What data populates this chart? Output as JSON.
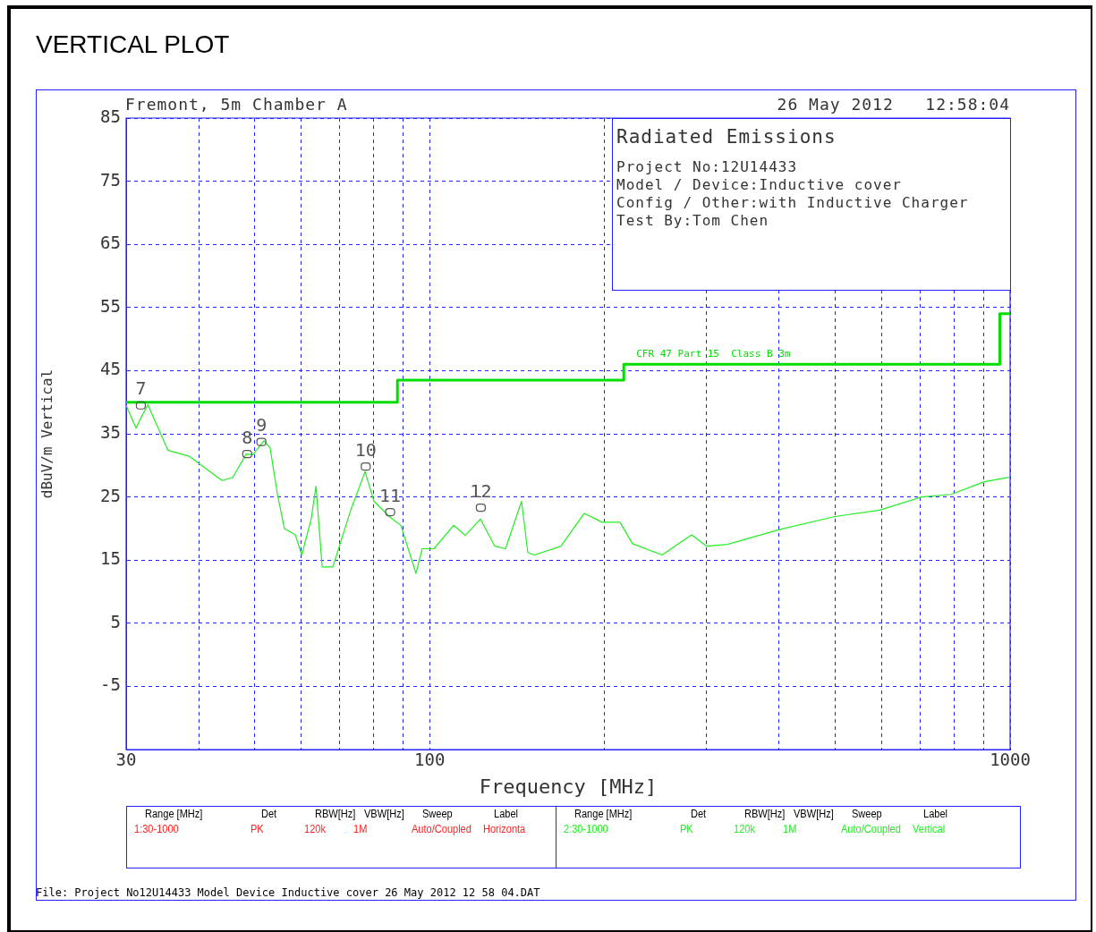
{
  "chart_data": {
    "type": "line",
    "title": "VERTICAL PLOT",
    "xlabel": "Frequency [MHz]",
    "ylabel": "dBuV/m Vertical",
    "log": "x",
    "grid": true,
    "legend": false,
    "marker": "none",
    "line_style": "solid",
    "xlim": [
      30,
      1000
    ],
    "xticks": [
      30,
      {
        "value": 40,
        "label": null
      },
      {
        "value": 50,
        "label": null
      },
      {
        "value": 60,
        "label": null
      },
      {
        "value": 70,
        "label": null
      },
      {
        "value": 80,
        "label": null
      },
      {
        "value": 90,
        "label": null
      },
      100,
      {
        "value": 200,
        "label": null
      },
      {
        "value": 300,
        "label": null
      },
      {
        "value": 400,
        "label": null
      },
      {
        "value": 500,
        "label": null
      },
      {
        "value": 600,
        "label": null
      },
      {
        "value": 700,
        "label": null
      },
      {
        "value": 800,
        "label": null
      },
      {
        "value": 900,
        "label": null
      },
      1000
    ],
    "ylim": [
      -15,
      85
    ],
    "yticks": [
      -5,
      5,
      15,
      25,
      35,
      45,
      55,
      65,
      75,
      85
    ],
    "series": [
      {
        "color": "#22ee22",
        "x": [
          30,
          31.2,
          31.8,
          32.7,
          33.8,
          35.4,
          38.6,
          43.9,
          45.8,
          48.3,
          49.6,
          51.8,
          53.1,
          54.7,
          56.2,
          58.7,
          60.2,
          62.5,
          63.7,
          65.3,
          68.1,
          73.1,
          77.4,
          80.2,
          85.2,
          89.2,
          94.7,
          97.1,
          101.7,
          110,
          115.2,
          122.3,
          129.5,
          135.1,
          144,
          147.6,
          151.4,
          168.4,
          184.6,
          198.2,
          212.8,
          223.6,
          251.4,
          282.6,
          300.2,
          325.9,
          398.8,
          498.7,
          595.9,
          703.7,
          791.2,
          902.3,
          996
        ],
        "values": [
          39.5,
          35.9,
          37.5,
          39.6,
          36.6,
          32.4,
          31.4,
          27.6,
          28.1,
          31.8,
          31.7,
          33.9,
          32.8,
          25.3,
          20.0,
          19.0,
          15.8,
          21.5,
          26.7,
          13.9,
          13.9,
          22.9,
          29.0,
          24.3,
          21.9,
          20.5,
          12.9,
          16.8,
          16.8,
          20.5,
          18.9,
          21.5,
          17.2,
          16.8,
          24.3,
          16.2,
          15.8,
          17.2,
          22.4,
          21.0,
          21.0,
          17.6,
          15.8,
          19.0,
          17.2,
          17.5,
          19.8,
          21.9,
          22.9,
          25.0,
          25.4,
          27.4,
          28.1
        ]
      },
      {
        "type": "step",
        "name": "CFR 47 Part 15  Class B 3m",
        "color": "#00dd00",
        "x": [
          30,
          88,
          216,
          960,
          1000
        ],
        "values": [
          40,
          43.5,
          46,
          54,
          54
        ]
      }
    ],
    "annotations": [
      "Fremont, 5m Chamber A",
      "26 May 2012   12:58:04",
      "Radiated Emissions",
      "Project No:12U14433",
      "Model / Device:Inductive cover",
      "Config / Other:with Inductive Charger",
      "Test By:Tom Chen",
      "Range [MHz]",
      "Det",
      "RBW[Hz]",
      "VBW[Hz]",
      "Sweep",
      "Label",
      "1:30-1000",
      "PK",
      "120k",
      "1M",
      "Auto/Coupled",
      "Horizonta",
      "Range [MHz]",
      "Det",
      "RBW[Hz]",
      "VBW[Hz]",
      "Sweep",
      "Label",
      "2:30-1000",
      "PK",
      "120k",
      "1M",
      "Auto/Coupled",
      "Vertical",
      "File: Project No12U14433 Model Device Inductive cover 26 May 2012 12 58 04.DAT",
      {
        "text": "7",
        "x": 31.8,
        "y": 39.5
      },
      {
        "text": "8",
        "x": 48.5,
        "y": 31.8
      },
      {
        "text": "9",
        "x": 51.3,
        "y": 33.7
      },
      {
        "text": "10",
        "x": 77.6,
        "y": 29.8
      },
      {
        "text": "11",
        "x": 85.5,
        "y": 22.6
      },
      {
        "text": "12",
        "x": 122.5,
        "y": 23.3
      }
    ]
  }
}
